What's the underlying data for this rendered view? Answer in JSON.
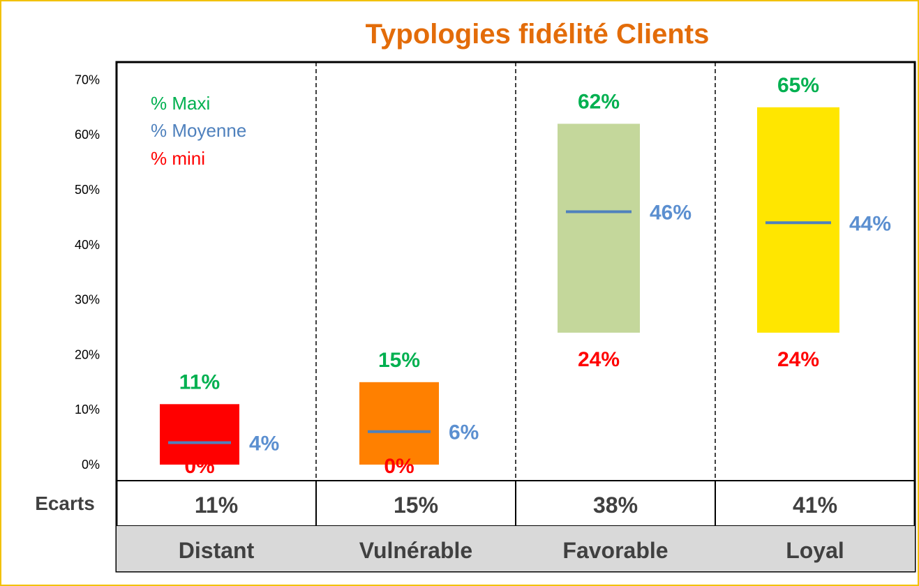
{
  "chart_data": {
    "type": "bar",
    "title": "Typologies fidélité Clients",
    "ylim": [
      0,
      70
    ],
    "yticks": [
      "0%",
      "10%",
      "20%",
      "30%",
      "40%",
      "50%",
      "60%",
      "70%"
    ],
    "legend": [
      "% Maxi",
      "% Moyenne",
      "% mini"
    ],
    "categories": [
      "Distant",
      "Vulnérable",
      "Favorable",
      "Loyal"
    ],
    "min": [
      0,
      0,
      24,
      24
    ],
    "mean": [
      4,
      6,
      46,
      44
    ],
    "max": [
      11,
      15,
      62,
      65
    ],
    "min_labels": [
      "0%",
      "0%",
      "24%",
      "24%"
    ],
    "mean_labels": [
      "4%",
      "6%",
      "46%",
      "44%"
    ],
    "max_labels": [
      "11%",
      "15%",
      "62%",
      "65%"
    ],
    "ecarts_label": "Ecarts",
    "ecarts": [
      "11%",
      "15%",
      "38%",
      "41%"
    ],
    "bar_colors": [
      "#ff0000",
      "#ff8000",
      "#c4d79b",
      "#ffe600"
    ],
    "max_color": "#00b050",
    "mean_color": "#4f81bd",
    "mean_label_color": "#5b8fd0",
    "min_color": "#ff0000",
    "title_color": "#e36c09",
    "category_row_color": "#d9d9d9"
  }
}
